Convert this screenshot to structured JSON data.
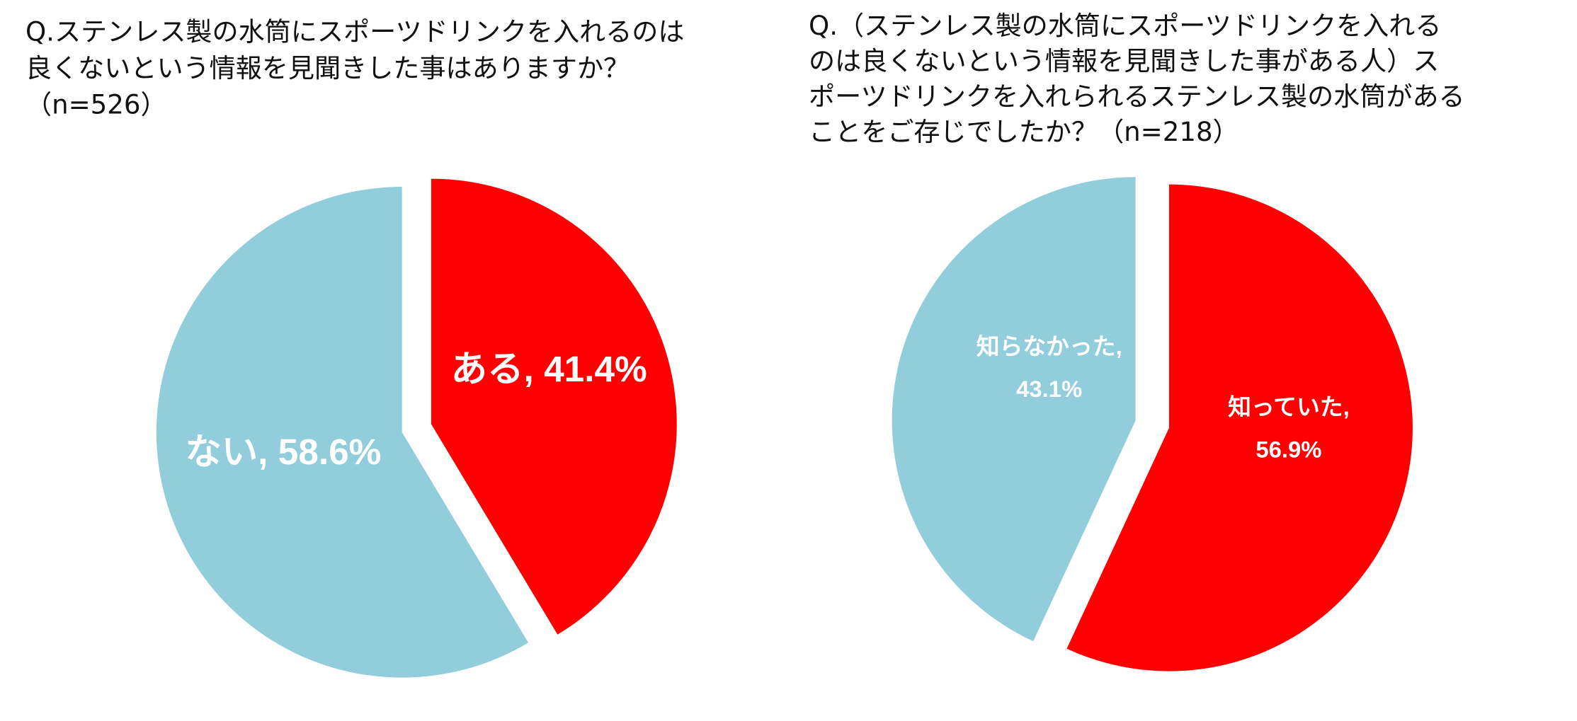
{
  "chart_data": [
    {
      "type": "pie",
      "title": [
        "Q.ステンレス製の水筒にスポーツドリンクを入れるのは",
        "良くないという情報を見聞きした事はありますか？",
        "（n=526）"
      ],
      "values": [
        41.4,
        58.6
      ],
      "value_labels": [
        [
          "ある, 41.4%"
        ],
        [
          "ない, 58.6%"
        ]
      ],
      "colors": [
        "#ff0000",
        "#92cddc"
      ]
    },
    {
      "type": "pie",
      "title": [
        "Q.（ステンレス製の水筒にスポーツドリンクを入れる",
        "のは良くないという情報を見聞きした事がある人）ス",
        "ポーツドリンクを入れられるステンレス製の水筒がある",
        "ことをご存じでしたか？（n=218）"
      ],
      "values": [
        56.9,
        43.1
      ],
      "value_labels": [
        [
          "知っていた,",
          "56.9%"
        ],
        [
          "知らなかった,",
          "43.1%"
        ]
      ],
      "colors": [
        "#ff0000",
        "#92cddc"
      ]
    }
  ]
}
